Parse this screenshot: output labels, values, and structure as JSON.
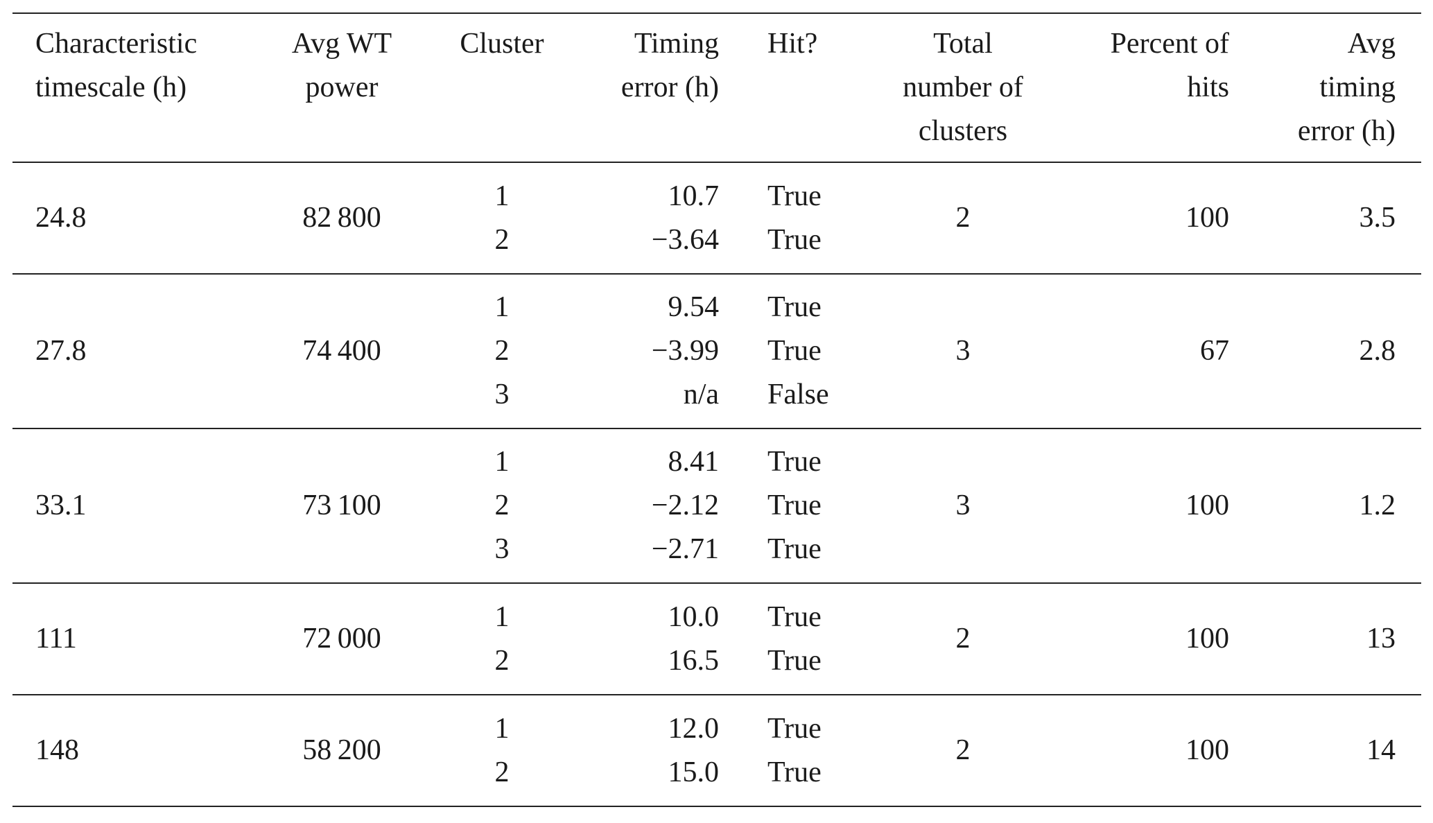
{
  "headers": [
    [
      "Characteristic",
      "timescale (h)"
    ],
    [
      "Avg WT",
      "power"
    ],
    [
      "Cluster"
    ],
    [
      "Timing",
      "error (h)"
    ],
    [
      "Hit?"
    ],
    [
      "Total",
      "number of",
      "clusters"
    ],
    [
      "Percent of",
      "hits"
    ],
    [
      "Avg",
      "timing",
      "error (h)"
    ]
  ],
  "rows": [
    {
      "timescale": "24.8",
      "power": "82 800",
      "clusters": [
        "1",
        "2"
      ],
      "errors": [
        "10.7",
        "−3.64"
      ],
      "hits": [
        "True",
        "True"
      ],
      "total": "2",
      "percent": "100",
      "avg": "3.5"
    },
    {
      "timescale": "27.8",
      "power": "74 400",
      "clusters": [
        "1",
        "2",
        "3"
      ],
      "errors": [
        "9.54",
        "−3.99",
        "n/a"
      ],
      "hits": [
        "True",
        "True",
        "False"
      ],
      "total": "3",
      "percent": "67",
      "avg": "2.8"
    },
    {
      "timescale": "33.1",
      "power": "73 100",
      "clusters": [
        "1",
        "2",
        "3"
      ],
      "errors": [
        "8.41",
        "−2.12",
        "−2.71"
      ],
      "hits": [
        "True",
        "True",
        "True"
      ],
      "total": "3",
      "percent": "100",
      "avg": "1.2"
    },
    {
      "timescale": "111",
      "power": "72 000",
      "clusters": [
        "1",
        "2"
      ],
      "errors": [
        "10.0",
        "16.5"
      ],
      "hits": [
        "True",
        "True"
      ],
      "total": "2",
      "percent": "100",
      "avg": "13"
    },
    {
      "timescale": "148",
      "power": "58 200",
      "clusters": [
        "1",
        "2"
      ],
      "errors": [
        "12.0",
        "15.0"
      ],
      "hits": [
        "True",
        "True"
      ],
      "total": "2",
      "percent": "100",
      "avg": "14"
    }
  ]
}
